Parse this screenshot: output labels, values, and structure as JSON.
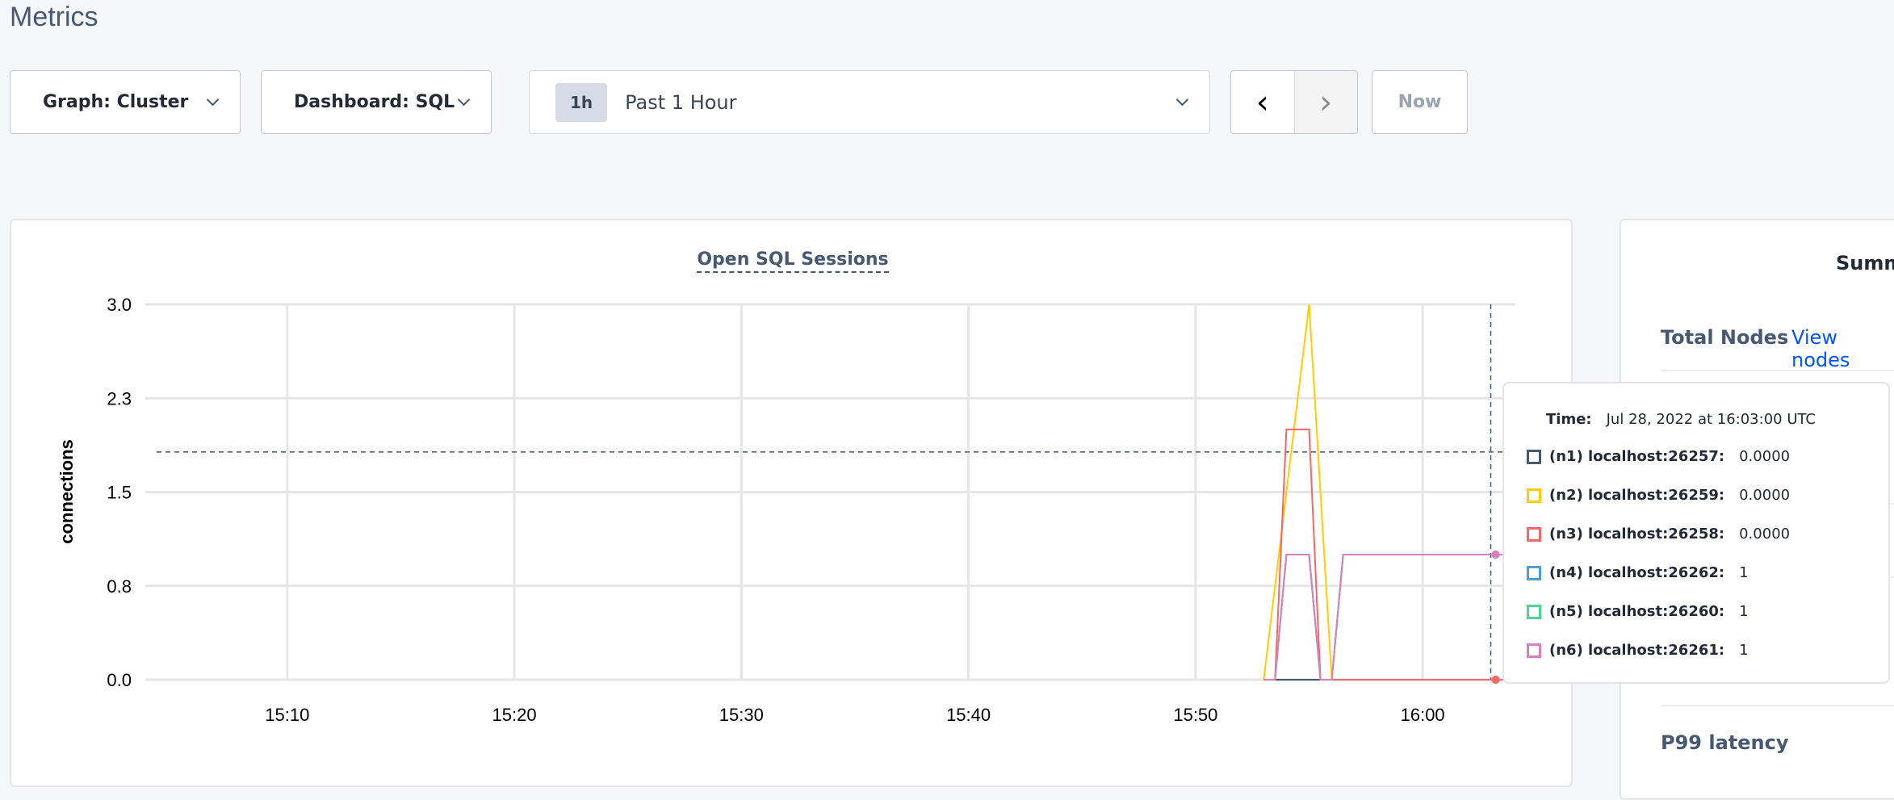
{
  "page": {
    "title": "Metrics"
  },
  "toolbar": {
    "graph_label": "Graph: Cluster",
    "dashboard_label": "Dashboard: SQL",
    "time_badge": "1h",
    "time_range_label": "Past 1 Hour",
    "prev_icon": "chevron-left-icon",
    "next_icon": "chevron-right-icon",
    "now_label": "Now"
  },
  "summary": {
    "title": "Summ",
    "total_nodes_label": "Total Nodes",
    "view_nodes_link": "View nodes",
    "p99_label": "P99 latency"
  },
  "chart_data": {
    "type": "line",
    "title": "Open SQL Sessions",
    "xlabel": "",
    "ylabel": "connections",
    "x_ticks": [
      "15:10",
      "15:20",
      "15:30",
      "15:40",
      "15:50",
      "16:00"
    ],
    "y_ticks": [
      "0.0",
      "0.8",
      "1.5",
      "2.3",
      "3.0"
    ],
    "y_tick_values": [
      0,
      0.75,
      1.5,
      2.25,
      3.0
    ],
    "xlim": [
      "15:03:45",
      "16:04:05"
    ],
    "ylim": [
      0,
      3
    ],
    "grid": true,
    "hover": {
      "time": "16:03:00",
      "y": 1.82
    },
    "series": [
      {
        "name": "(n1) localhost:26257",
        "color": "#475872",
        "points": [
          [
            "15:53:00",
            0
          ],
          [
            "15:54:00",
            0
          ],
          [
            "15:55:30",
            0
          ],
          [
            "16:03:00",
            0
          ],
          [
            "16:04:05",
            0
          ]
        ]
      },
      {
        "name": "(n4) localhost:26262",
        "color": "#4E9FD1",
        "points": [
          [
            "15:53:00",
            0
          ],
          [
            "15:53:30",
            0
          ],
          [
            "15:54:00",
            1
          ],
          [
            "15:55:00",
            1
          ],
          [
            "15:55:30",
            0
          ],
          [
            "15:56:00",
            0
          ],
          [
            "15:56:30",
            1
          ],
          [
            "16:03:00",
            1
          ],
          [
            "16:04:05",
            1
          ]
        ]
      },
      {
        "name": "(n5) localhost:26260",
        "color": "#49D990",
        "points": [
          [
            "15:53:00",
            0
          ],
          [
            "15:53:30",
            0
          ],
          [
            "15:54:00",
            1
          ],
          [
            "15:55:00",
            1
          ],
          [
            "15:55:30",
            0
          ],
          [
            "15:56:00",
            0
          ],
          [
            "15:56:30",
            1
          ],
          [
            "16:03:00",
            1
          ],
          [
            "16:04:05",
            1
          ]
        ]
      },
      {
        "name": "(n2) localhost:26259",
        "color": "#FFCD02",
        "points": [
          [
            "15:53:00",
            0
          ],
          [
            "15:55:00",
            3
          ],
          [
            "15:56:00",
            0
          ],
          [
            "16:03:00",
            0
          ],
          [
            "16:04:05",
            0
          ]
        ]
      },
      {
        "name": "(n3) localhost:26258",
        "color": "#F16969",
        "points": [
          [
            "15:53:00",
            0
          ],
          [
            "15:53:30",
            0
          ],
          [
            "15:54:00",
            2
          ],
          [
            "15:55:00",
            2
          ],
          [
            "15:55:30",
            0
          ],
          [
            "16:03:00",
            0
          ],
          [
            "16:04:05",
            0
          ]
        ]
      },
      {
        "name": "(n6) localhost:26261",
        "color": "#D77FBF",
        "points": [
          [
            "15:53:00",
            0
          ],
          [
            "15:53:30",
            0
          ],
          [
            "15:54:00",
            1
          ],
          [
            "15:55:00",
            1
          ],
          [
            "15:55:30",
            0
          ],
          [
            "15:56:00",
            0
          ],
          [
            "15:56:30",
            1
          ],
          [
            "16:03:00",
            1
          ],
          [
            "16:04:05",
            1
          ]
        ]
      }
    ]
  },
  "tooltip": {
    "time_label": "Time:",
    "time_value": "Jul 28, 2022 at 16:03:00 UTC",
    "rows": [
      {
        "label": "(n1) localhost:26257:",
        "value": "0.0000",
        "color": "#475872"
      },
      {
        "label": "(n2) localhost:26259:",
        "value": "0.0000",
        "color": "#FFCD02"
      },
      {
        "label": "(n3) localhost:26258:",
        "value": "0.0000",
        "color": "#F16969"
      },
      {
        "label": "(n4) localhost:26262:",
        "value": "1",
        "color": "#4E9FD1"
      },
      {
        "label": "(n5) localhost:26260:",
        "value": "1",
        "color": "#49D990"
      },
      {
        "label": "(n6) localhost:26261:",
        "value": "1",
        "color": "#D77FBF"
      }
    ]
  }
}
